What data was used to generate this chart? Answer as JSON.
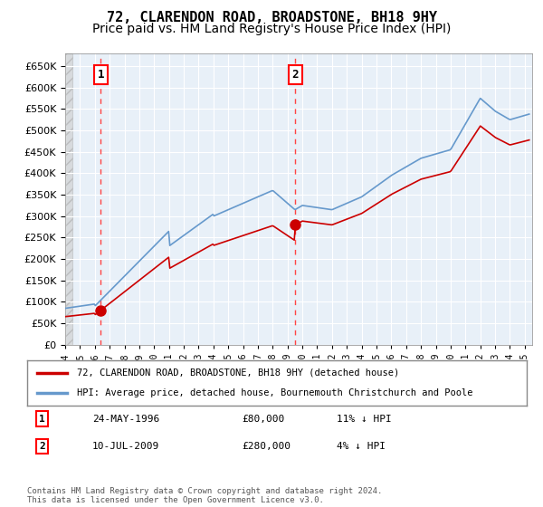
{
  "title": "72, CLARENDON ROAD, BROADSTONE, BH18 9HY",
  "subtitle": "Price paid vs. HM Land Registry's House Price Index (HPI)",
  "ylim": [
    0,
    680000
  ],
  "yticks": [
    0,
    50000,
    100000,
    150000,
    200000,
    250000,
    300000,
    350000,
    400000,
    450000,
    500000,
    550000,
    600000,
    650000
  ],
  "xlim_start": 1994.0,
  "xlim_end": 2025.5,
  "sale1_date": 1996.39,
  "sale1_price": 80000,
  "sale1_label": "1",
  "sale2_date": 2009.52,
  "sale2_price": 280000,
  "sale2_label": "2",
  "hpi_color": "#6699cc",
  "house_color": "#cc0000",
  "dashed_color": "#ff4444",
  "plot_bg_color": "#e8f0f8",
  "legend_line1": "72, CLARENDON ROAD, BROADSTONE, BH18 9HY (detached house)",
  "legend_line2": "HPI: Average price, detached house, Bournemouth Christchurch and Poole",
  "table_row1": [
    "1",
    "24-MAY-1996",
    "£80,000",
    "11% ↓ HPI"
  ],
  "table_row2": [
    "2",
    "10-JUL-2009",
    "£280,000",
    "4% ↓ HPI"
  ],
  "footer": "Contains HM Land Registry data © Crown copyright and database right 2024.\nThis data is licensed under the Open Government Licence v3.0.",
  "title_fontsize": 11,
  "subtitle_fontsize": 10
}
